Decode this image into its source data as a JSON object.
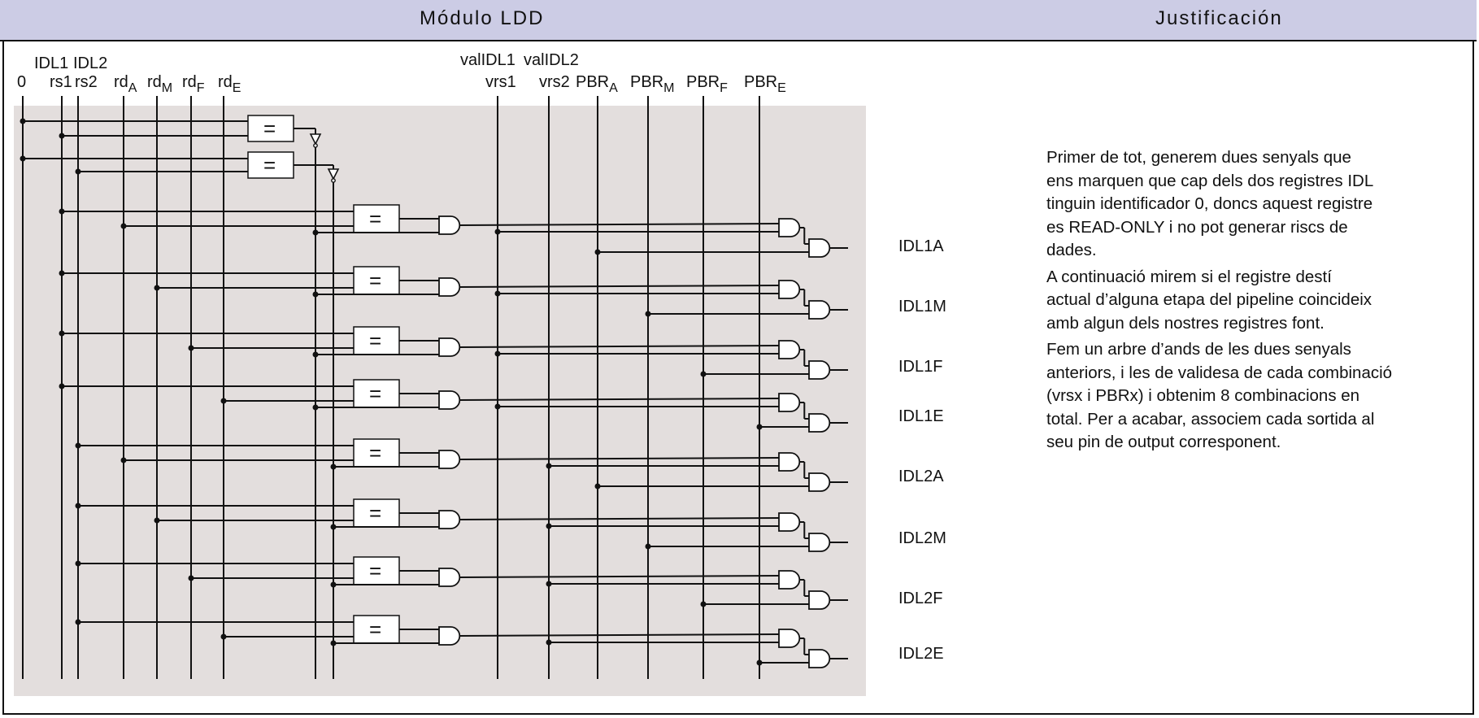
{
  "header": {
    "module_title": "Módulo LDD",
    "justification_title": "Justificación"
  },
  "inputs": {
    "zero": "0",
    "idl1": "IDL1",
    "idl2": "IDL2",
    "rs1": "rs1",
    "rs2": "rs2",
    "rd": "rd",
    "valIDL1": "valIDL1",
    "valIDL2": "valIDL2",
    "vrs1": "vrs1",
    "vrs2": "vrs2",
    "pbr": "PBR",
    "stages": [
      "A",
      "M",
      "F",
      "E"
    ]
  },
  "comparator_symbol": "=",
  "outputs": [
    "IDL1A",
    "IDL1M",
    "IDL1F",
    "IDL1E",
    "IDL2A",
    "IDL2M",
    "IDL2F",
    "IDL2E"
  ],
  "justification": {
    "p1": "Primer de tot, generem dues senyals que\nens marquen que cap dels dos registres IDL\ntinguin identificador 0, doncs aquest registre\nes READ-ONLY i no pot generar riscs de\ndades.",
    "p2": "A continuació mirem si el registre destí\nactual d’alguna etapa del pipeline coincideix\namb algun dels nostres registres font.",
    "p3": "Fem un arbre d’ands de les dues senyals\nanteriors, i les de validesa de cada combinació\n(vrsx i PBRx) i obtenim 8 combinacions en\ntotal. Per a acabar, associem cada sortida al\nseu pin de output corresponent."
  },
  "colors": {
    "header_bg": "#cccce5",
    "panel_bg": "#e3dedd",
    "wire": "#111111",
    "gate_fill": "#ffffff"
  }
}
